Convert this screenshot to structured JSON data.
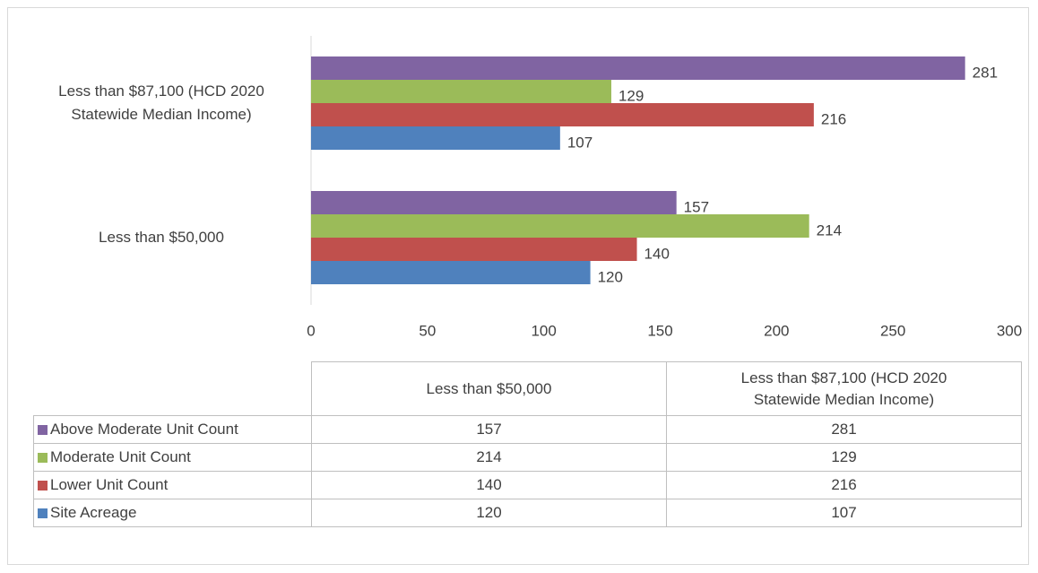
{
  "chart_data": {
    "type": "hbar",
    "categories": [
      "Less than $50,000",
      "Less than $87,100 (HCD 2020 Statewide Median Income)"
    ],
    "series": [
      {
        "name": "Above Moderate Unit Count",
        "color": "#8064a2",
        "values": [
          157,
          281
        ]
      },
      {
        "name": "Moderate Unit Count",
        "color": "#9bbb59",
        "values": [
          214,
          129
        ]
      },
      {
        "name": "Lower Unit Count",
        "color": "#c0504d",
        "values": [
          140,
          216
        ]
      },
      {
        "name": "Site Acreage",
        "color": "#4f81bd",
        "values": [
          120,
          107
        ]
      }
    ],
    "xlim": [
      0,
      300
    ],
    "xticks": [
      0,
      50,
      100,
      150,
      200,
      250,
      300
    ],
    "grid": false,
    "data_table": true
  }
}
